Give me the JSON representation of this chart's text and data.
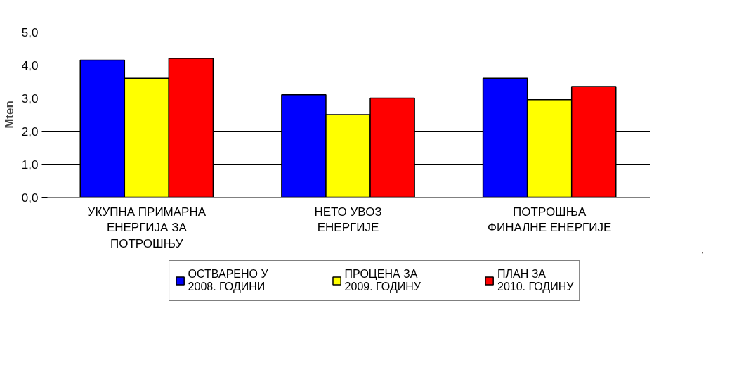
{
  "chart_data": {
    "type": "bar",
    "ylabel": "Mten",
    "categories": [
      "УКУПНА ПРИМАРНА\nЕНЕРГИЈА ЗА\nПОТРОШЊУ",
      "НЕТО УВОЗ\nЕНЕРГИЈЕ",
      "ПОТРОШЊА\nФИНАЛНЕ ЕНЕРГИЈЕ"
    ],
    "series": [
      {
        "name": "ОСТВАРЕНО У\n2008. ГОДИНИ",
        "color": "#0000ff",
        "values": [
          4.15,
          3.1,
          3.6
        ]
      },
      {
        "name": "ПРОЦЕНА ЗА\n2009. ГОДИНУ",
        "color": "#ffff00",
        "values": [
          3.6,
          2.5,
          2.95
        ]
      },
      {
        "name": "ПЛАН ЗА\n2010. ГОДИНУ",
        "color": "#ff0000",
        "values": [
          4.2,
          3.0,
          3.35
        ]
      }
    ],
    "ylim": [
      0,
      5
    ],
    "yticks": [
      {
        "value": 0,
        "label": "0,0"
      },
      {
        "value": 1,
        "label": "1,0"
      },
      {
        "value": 2,
        "label": "2,0"
      },
      {
        "value": 3,
        "label": "3,0"
      },
      {
        "value": 4,
        "label": "4,0"
      },
      {
        "value": 5,
        "label": "5,0"
      }
    ],
    "grid": "y",
    "legend": "bottom"
  }
}
